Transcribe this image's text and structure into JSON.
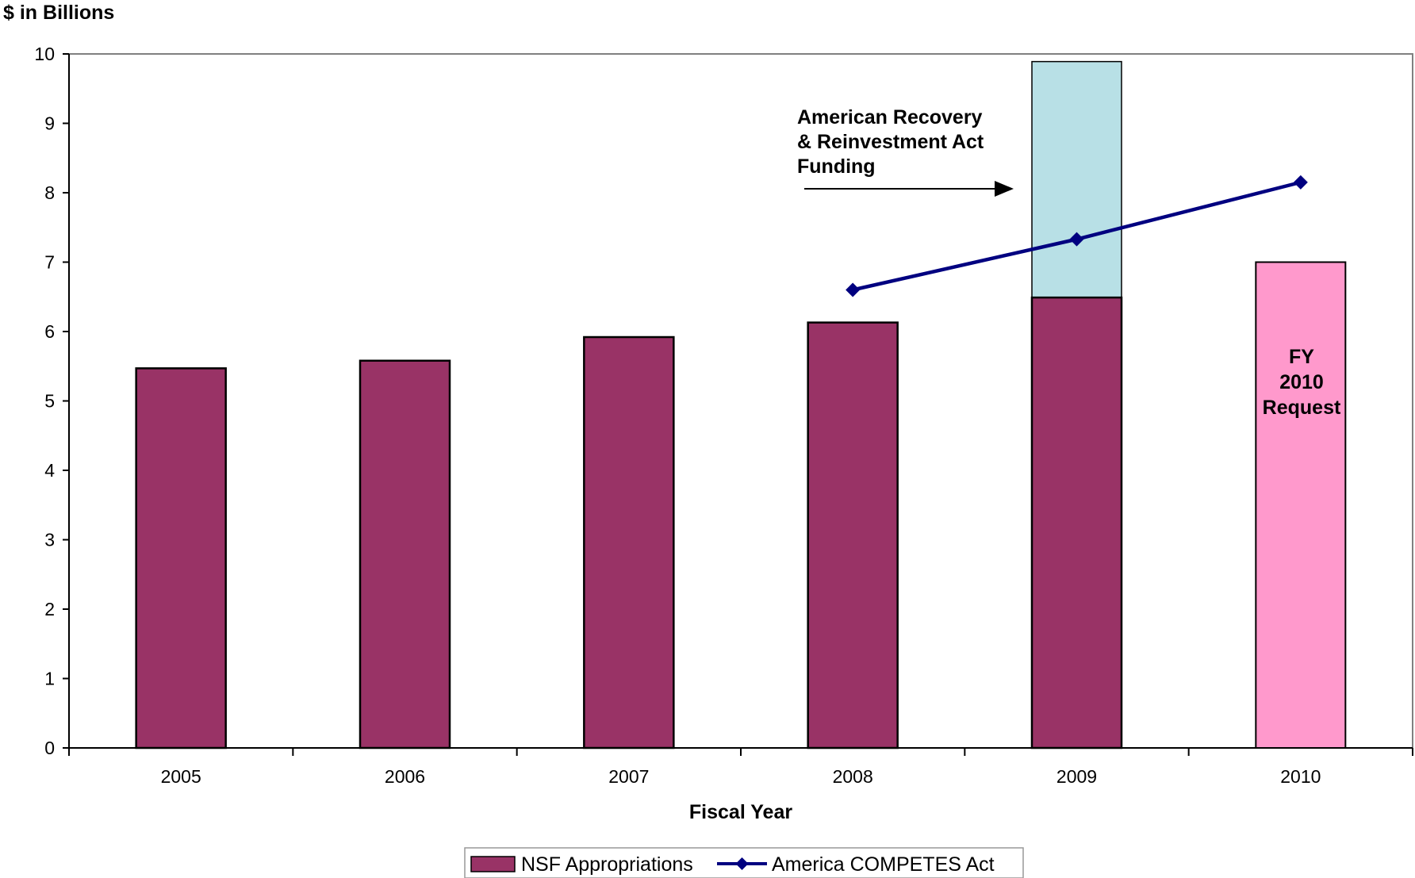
{
  "chart_data": {
    "type": "bar",
    "ylabel": "$ in Billions",
    "xlabel": "Fiscal Year",
    "categories": [
      "2005",
      "2006",
      "2007",
      "2008",
      "2009",
      "2010"
    ],
    "ylim": [
      0,
      10
    ],
    "yticks": [
      "0",
      "1",
      "2",
      "3",
      "4",
      "5",
      "6",
      "7",
      "8",
      "9",
      "10"
    ],
    "series": [
      {
        "name": "NSF Appropriations",
        "kind": "bar",
        "color": "#993366",
        "values": [
          5.47,
          5.58,
          5.92,
          6.13,
          6.49,
          null
        ]
      },
      {
        "kind": "bar",
        "color": "#ff99cc",
        "values": [
          null,
          null,
          null,
          null,
          null,
          7.0
        ]
      },
      {
        "kind": "bar-stacked",
        "color": "#b8e0e6",
        "values": [
          null,
          null,
          null,
          null,
          3.4,
          null
        ]
      },
      {
        "name": "America COMPETES Act",
        "kind": "line",
        "color": "#000080",
        "values": [
          null,
          null,
          null,
          6.6,
          7.33,
          8.15
        ]
      }
    ],
    "annotations": {
      "recovery_lines": [
        "American Recovery",
        "& Reinvestment Act",
        "Funding"
      ],
      "request_lines": [
        "FY",
        "2010",
        "Request"
      ]
    },
    "grid": false,
    "legend_position": "bottom"
  }
}
